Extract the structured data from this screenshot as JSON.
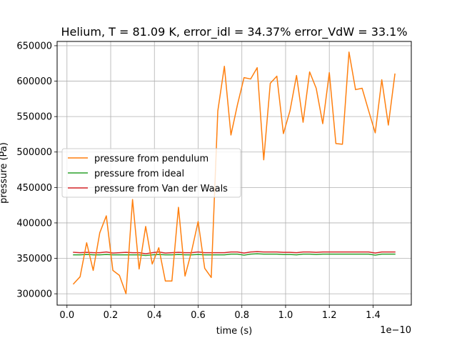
{
  "chart_data": {
    "type": "line",
    "title": "Helium, T = 81.09 K, error_idl = 34.37% error_VdW = 33.1%",
    "xlabel": "time (s)",
    "ylabel": "pressure (Pa)",
    "x_offset_text": "1e−10",
    "xlim": [
      -0.045,
      1.575
    ],
    "ylim": [
      284000,
      656000
    ],
    "xticks": [
      0.0,
      0.2,
      0.4,
      0.6,
      0.8,
      1.0,
      1.2,
      1.4
    ],
    "xtick_labels": [
      "0.0",
      "0.2",
      "0.4",
      "0.6",
      "0.8",
      "1.0",
      "1.2",
      "1.4"
    ],
    "yticks": [
      300000,
      350000,
      400000,
      450000,
      500000,
      550000,
      600000,
      650000
    ],
    "ytick_labels": [
      "300000",
      "350000",
      "400000",
      "450000",
      "500000",
      "550000",
      "600000",
      "650000"
    ],
    "grid": true,
    "legend_position": "center-left",
    "x": [
      0.03,
      0.06,
      0.09,
      0.12,
      0.15,
      0.18,
      0.21,
      0.24,
      0.27,
      0.3,
      0.33,
      0.36,
      0.39,
      0.42,
      0.45,
      0.48,
      0.51,
      0.54,
      0.57,
      0.6,
      0.63,
      0.66,
      0.69,
      0.72,
      0.75,
      0.78,
      0.81,
      0.84,
      0.87,
      0.9,
      0.93,
      0.96,
      0.99,
      1.02,
      1.05,
      1.08,
      1.11,
      1.14,
      1.17,
      1.2,
      1.23,
      1.26,
      1.29,
      1.32,
      1.35,
      1.38,
      1.41,
      1.44,
      1.47,
      1.5
    ],
    "series": [
      {
        "name": "pressure from pendulum",
        "color": "#ff7f0e",
        "values": [
          314000,
          324000,
          372000,
          333000,
          386000,
          410000,
          333000,
          326000,
          300000,
          433000,
          335000,
          395000,
          342000,
          365000,
          318000,
          318000,
          422000,
          325000,
          360000,
          402000,
          336000,
          323000,
          558000,
          621000,
          524000,
          567000,
          605000,
          603000,
          619000,
          489000,
          597000,
          607000,
          526000,
          558000,
          608000,
          542000,
          613000,
          590000,
          540000,
          612000,
          512000,
          511000,
          641000,
          588000,
          590000,
          558000,
          527000,
          602000,
          538000,
          610000
        ]
      },
      {
        "name": "pressure from ideal",
        "color": "#2ca02c",
        "values": [
          355000,
          355000,
          355500,
          355000,
          355000,
          355500,
          355000,
          355000,
          355000,
          355000,
          355000,
          354000,
          355000,
          355500,
          355000,
          355000,
          355500,
          355000,
          355000,
          355500,
          355000,
          355000,
          355000,
          355000,
          356000,
          356000,
          354500,
          356000,
          356500,
          356000,
          356000,
          356000,
          355500,
          355500,
          355000,
          356000,
          356000,
          355500,
          356000,
          356000,
          356000,
          356000,
          356000,
          356000,
          356000,
          356000,
          354500,
          356000,
          356000,
          356000
        ]
      },
      {
        "name": "pressure from Van der Waals",
        "color": "#d62728",
        "values": [
          358500,
          358000,
          358500,
          358000,
          358000,
          359000,
          357500,
          358000,
          358500,
          358000,
          358000,
          356500,
          358000,
          359000,
          357500,
          358000,
          358500,
          358000,
          358000,
          359000,
          358000,
          358000,
          358000,
          358000,
          359000,
          359000,
          357500,
          359000,
          359500,
          359000,
          359000,
          359000,
          358500,
          358500,
          358000,
          359000,
          359000,
          358500,
          359000,
          359000,
          359000,
          359000,
          359000,
          359000,
          359000,
          359000,
          357500,
          359000,
          359000,
          359000
        ]
      }
    ]
  }
}
